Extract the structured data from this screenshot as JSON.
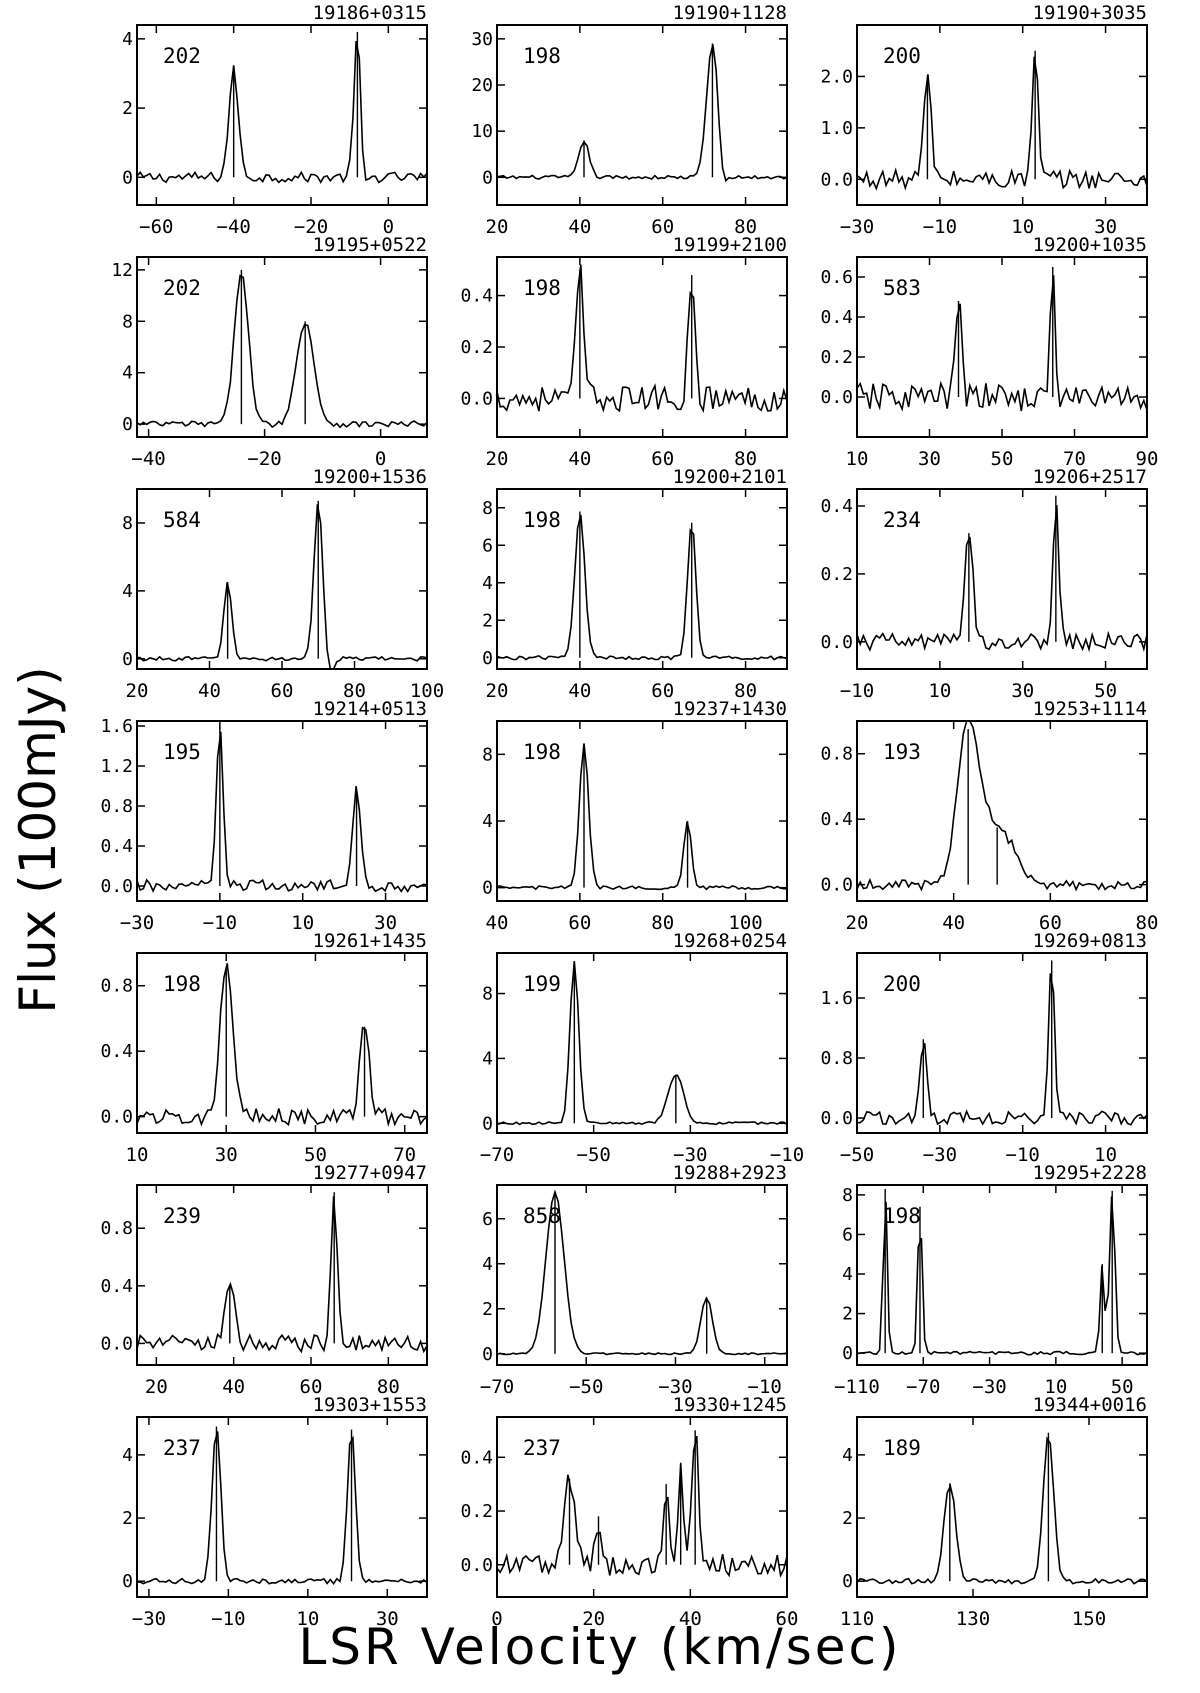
{
  "figure": {
    "ylabel": "Flux (100mJy)",
    "xlabel": "LSR Velocity (km/sec)"
  },
  "chart_data": [
    {
      "type": "line",
      "title": "19186+0315",
      "id_label": "202",
      "xlim": [
        -65,
        10
      ],
      "ylim": [
        -0.8,
        4.4
      ],
      "xticks": [
        -60,
        -40,
        -20,
        0
      ],
      "yticks": [
        {
          "v": 0,
          "l": "0"
        },
        {
          "v": 2,
          "l": "2"
        },
        {
          "v": 4,
          "l": "4"
        }
      ],
      "peaks": [
        {
          "v": -40,
          "a": 3.1,
          "w": 1.2
        },
        {
          "v": -8,
          "a": 4.2,
          "w": 0.9
        }
      ],
      "noise": 0.15,
      "dip_after": [
        -8
      ]
    },
    {
      "type": "line",
      "title": "19190+1128",
      "id_label": "198",
      "xlim": [
        20,
        90
      ],
      "ylim": [
        -6,
        33
      ],
      "xticks": [
        20,
        40,
        60,
        80
      ],
      "yticks": [
        {
          "v": 0,
          "l": "0"
        },
        {
          "v": 10,
          "l": "10"
        },
        {
          "v": 20,
          "l": "20"
        },
        {
          "v": 30,
          "l": "30"
        }
      ],
      "peaks": [
        {
          "v": 41,
          "a": 8,
          "w": 1.2
        },
        {
          "v": 72,
          "a": 29,
          "w": 1.4
        }
      ],
      "noise": 0.4,
      "dip_after": [
        73
      ]
    },
    {
      "type": "line",
      "title": "19190+3035",
      "id_label": "200",
      "xlim": [
        -30,
        40
      ],
      "ylim": [
        -0.5,
        3.0
      ],
      "xticks": [
        -30,
        -10,
        10,
        30
      ],
      "yticks": [
        {
          "v": 0,
          "l": "0.0"
        },
        {
          "v": 1,
          "l": "1.0"
        },
        {
          "v": 2,
          "l": "2.0"
        }
      ],
      "peaks": [
        {
          "v": -13,
          "a": 2.0,
          "w": 0.9
        },
        {
          "v": 13,
          "a": 2.5,
          "w": 0.7
        }
      ],
      "noise": 0.18,
      "dip_after": []
    },
    {
      "type": "line",
      "title": "19195+0522",
      "id_label": "202",
      "xlim": [
        -42,
        8
      ],
      "ylim": [
        -1,
        13
      ],
      "xticks": [
        -40,
        -20,
        0
      ],
      "yticks": [
        {
          "v": 0,
          "l": "0"
        },
        {
          "v": 4,
          "l": "4"
        },
        {
          "v": 8,
          "l": "8"
        },
        {
          "v": 12,
          "l": "12"
        }
      ],
      "peaks": [
        {
          "v": -24,
          "a": 12,
          "w": 1.2
        },
        {
          "v": -13,
          "a": 8,
          "w": 1.5
        }
      ],
      "noise": 0.25,
      "dip_after": []
    },
    {
      "type": "line",
      "title": "19199+2100",
      "id_label": "198",
      "xlim": [
        20,
        90
      ],
      "ylim": [
        -0.15,
        0.55
      ],
      "xticks": [
        20,
        40,
        60,
        80
      ],
      "yticks": [
        {
          "v": 0,
          "l": "0.0"
        },
        {
          "v": 0.2,
          "l": "0.2"
        },
        {
          "v": 0.4,
          "l": "0.4"
        }
      ],
      "peaks": [
        {
          "v": 40,
          "a": 0.5,
          "w": 0.9
        },
        {
          "v": 67,
          "a": 0.48,
          "w": 0.8
        }
      ],
      "noise": 0.05,
      "dip_after": []
    },
    {
      "type": "line",
      "title": "19200+1035",
      "id_label": "583",
      "xlim": [
        10,
        90
      ],
      "ylim": [
        -0.2,
        0.7
      ],
      "xticks": [
        10,
        30,
        50,
        70,
        90
      ],
      "yticks": [
        {
          "v": 0,
          "l": "0.0"
        },
        {
          "v": 0.2,
          "l": "0.2"
        },
        {
          "v": 0.4,
          "l": "0.4"
        },
        {
          "v": 0.6,
          "l": "0.6"
        }
      ],
      "peaks": [
        {
          "v": 38,
          "a": 0.48,
          "w": 0.8
        },
        {
          "v": 64,
          "a": 0.65,
          "w": 0.6
        }
      ],
      "noise": 0.07,
      "dip_after": []
    },
    {
      "type": "line",
      "title": "19200+1536",
      "id_label": "584",
      "xlim": [
        20,
        100
      ],
      "ylim": [
        -0.6,
        10
      ],
      "xticks": [
        20,
        40,
        60,
        80,
        100
      ],
      "yticks": [
        {
          "v": 0,
          "l": "0"
        },
        {
          "v": 4,
          "l": "4"
        },
        {
          "v": 8,
          "l": "8"
        }
      ],
      "peaks": [
        {
          "v": 45,
          "a": 4.5,
          "w": 1.1
        },
        {
          "v": 70,
          "a": 9.3,
          "w": 1.2
        }
      ],
      "noise": 0.12,
      "dip_after": [
        72
      ]
    },
    {
      "type": "line",
      "title": "19200+2101",
      "id_label": "198",
      "xlim": [
        20,
        90
      ],
      "ylim": [
        -0.6,
        9
      ],
      "xticks": [
        20,
        40,
        60,
        80
      ],
      "yticks": [
        {
          "v": 0,
          "l": "0"
        },
        {
          "v": 2,
          "l": "2"
        },
        {
          "v": 4,
          "l": "4"
        },
        {
          "v": 6,
          "l": "6"
        },
        {
          "v": 8,
          "l": "8"
        }
      ],
      "peaks": [
        {
          "v": 40,
          "a": 7.8,
          "w": 1.2
        },
        {
          "v": 67,
          "a": 7.2,
          "w": 1.0
        }
      ],
      "noise": 0.1,
      "dip_after": []
    },
    {
      "type": "line",
      "title": "19206+2517",
      "id_label": "234",
      "xlim": [
        -10,
        60
      ],
      "ylim": [
        -0.08,
        0.45
      ],
      "xticks": [
        -10,
        10,
        30,
        50
      ],
      "yticks": [
        {
          "v": 0,
          "l": "0.0"
        },
        {
          "v": 0.2,
          "l": "0.2"
        },
        {
          "v": 0.4,
          "l": "0.4"
        }
      ],
      "peaks": [
        {
          "v": 17,
          "a": 0.32,
          "w": 1.0
        },
        {
          "v": 38,
          "a": 0.43,
          "w": 0.7
        }
      ],
      "noise": 0.025,
      "dip_after": []
    },
    {
      "type": "line",
      "title": "19214+0513",
      "id_label": "195",
      "xlim": [
        -30,
        40
      ],
      "ylim": [
        -0.15,
        1.65
      ],
      "xticks": [
        -30,
        -10,
        10,
        30
      ],
      "yticks": [
        {
          "v": 0,
          "l": "0.0"
        },
        {
          "v": 0.4,
          "l": "0.4"
        },
        {
          "v": 0.8,
          "l": "0.8"
        },
        {
          "v": 1.2,
          "l": "1.2"
        },
        {
          "v": 1.6,
          "l": "1.6"
        }
      ],
      "peaks": [
        {
          "v": -10,
          "a": 1.6,
          "w": 0.8
        },
        {
          "v": 23,
          "a": 0.95,
          "w": 1.0
        }
      ],
      "noise": 0.06,
      "dip_after": []
    },
    {
      "type": "line",
      "title": "19237+1430",
      "id_label": "198",
      "xlim": [
        40,
        110
      ],
      "ylim": [
        -0.8,
        10
      ],
      "xticks": [
        40,
        60,
        80,
        100
      ],
      "yticks": [
        {
          "v": 0,
          "l": "0"
        },
        {
          "v": 4,
          "l": "4"
        },
        {
          "v": 8,
          "l": "8"
        }
      ],
      "peaks": [
        {
          "v": 61,
          "a": 8.6,
          "w": 1.1
        },
        {
          "v": 86,
          "a": 4.0,
          "w": 0.9
        }
      ],
      "noise": 0.1,
      "dip_after": []
    },
    {
      "type": "line",
      "title": "19253+1114",
      "id_label": "193",
      "xlim": [
        20,
        80
      ],
      "ylim": [
        -0.1,
        1.0
      ],
      "xticks": [
        20,
        40,
        60,
        80
      ],
      "yticks": [
        {
          "v": 0,
          "l": "0.0"
        },
        {
          "v": 0.4,
          "l": "0.4"
        },
        {
          "v": 0.8,
          "l": "0.8"
        }
      ],
      "peaks": [
        {
          "v": 43,
          "a": 0.95,
          "w": 2.2
        },
        {
          "v": 49,
          "a": 0.35,
          "w": 3.5
        }
      ],
      "noise": 0.03,
      "dip_after": []
    },
    {
      "type": "line",
      "title": "19261+1435",
      "id_label": "198",
      "xlim": [
        10,
        75
      ],
      "ylim": [
        -0.1,
        1.0
      ],
      "xticks": [
        10,
        30,
        50,
        70
      ],
      "yticks": [
        {
          "v": 0,
          "l": "0.0"
        },
        {
          "v": 0.4,
          "l": "0.4"
        },
        {
          "v": 0.8,
          "l": "0.8"
        }
      ],
      "peaks": [
        {
          "v": 30,
          "a": 0.9,
          "w": 1.4
        },
        {
          "v": 61,
          "a": 0.55,
          "w": 1.1
        }
      ],
      "noise": 0.05,
      "dip_after": []
    },
    {
      "type": "line",
      "title": "19268+0254",
      "id_label": "199",
      "xlim": [
        -70,
        -10
      ],
      "ylim": [
        -0.6,
        10.5
      ],
      "xticks": [
        -70,
        -50,
        -30,
        -10
      ],
      "yticks": [
        {
          "v": 0,
          "l": "0"
        },
        {
          "v": 4,
          "l": "4"
        },
        {
          "v": 8,
          "l": "8"
        }
      ],
      "peaks": [
        {
          "v": -54,
          "a": 10,
          "w": 0.9
        },
        {
          "v": -33,
          "a": 3.0,
          "w": 1.6
        }
      ],
      "noise": 0.08,
      "dip_after": []
    },
    {
      "type": "line",
      "title": "19269+0813",
      "id_label": "200",
      "xlim": [
        -50,
        20
      ],
      "ylim": [
        -0.2,
        2.2
      ],
      "xticks": [
        -50,
        -30,
        -10,
        10
      ],
      "yticks": [
        {
          "v": 0,
          "l": "0.0"
        },
        {
          "v": 0.8,
          "l": "0.8"
        },
        {
          "v": 1.6,
          "l": "1.6"
        }
      ],
      "peaks": [
        {
          "v": -34,
          "a": 1.05,
          "w": 0.8
        },
        {
          "v": -3,
          "a": 2.1,
          "w": 0.7
        }
      ],
      "noise": 0.09,
      "dip_after": []
    },
    {
      "type": "line",
      "title": "19277+0947",
      "id_label": "239",
      "xlim": [
        15,
        90
      ],
      "ylim": [
        -0.15,
        1.1
      ],
      "xticks": [
        20,
        40,
        60,
        80
      ],
      "yticks": [
        {
          "v": 0,
          "l": "0.0"
        },
        {
          "v": 0.4,
          "l": "0.4"
        },
        {
          "v": 0.8,
          "l": "0.8"
        }
      ],
      "peaks": [
        {
          "v": 39,
          "a": 0.4,
          "w": 1.2
        },
        {
          "v": 66,
          "a": 1.05,
          "w": 0.8
        }
      ],
      "noise": 0.06,
      "dip_after": []
    },
    {
      "type": "line",
      "title": "19288+2923",
      "id_label": "858",
      "xlim": [
        -70,
        -5
      ],
      "ylim": [
        -0.5,
        7.5
      ],
      "xticks": [
        -70,
        -50,
        -30,
        -10
      ],
      "yticks": [
        {
          "v": 0,
          "l": "0"
        },
        {
          "v": 2,
          "l": "2"
        },
        {
          "v": 4,
          "l": "4"
        },
        {
          "v": 6,
          "l": "6"
        }
      ],
      "peaks": [
        {
          "v": -57,
          "a": 7.2,
          "w": 2.0
        },
        {
          "v": -23,
          "a": 2.5,
          "w": 1.3
        }
      ],
      "noise": 0.04,
      "dip_after": []
    },
    {
      "type": "line",
      "title": "19295+2228",
      "id_label": "198",
      "xlim": [
        -110,
        65
      ],
      "ylim": [
        -0.6,
        8.5
      ],
      "xticks": [
        -110,
        -70,
        -30,
        10,
        50
      ],
      "yticks": [
        {
          "v": 0,
          "l": "0"
        },
        {
          "v": 2,
          "l": "2"
        },
        {
          "v": 4,
          "l": "4"
        },
        {
          "v": 6,
          "l": "6"
        },
        {
          "v": 8,
          "l": "8"
        }
      ],
      "peaks": [
        {
          "v": -93,
          "a": 8.3,
          "w": 1.2
        },
        {
          "v": -72,
          "a": 7.4,
          "w": 1.3
        },
        {
          "v": 38,
          "a": 4.5,
          "w": 1.3
        },
        {
          "v": 44,
          "a": 8.2,
          "w": 1.6
        }
      ],
      "noise": 0.08,
      "dip_after": []
    },
    {
      "type": "line",
      "title": "19303+1553",
      "id_label": "237",
      "xlim": [
        -33,
        40
      ],
      "ylim": [
        -0.5,
        5.2
      ],
      "xticks": [
        -30,
        -10,
        10,
        30
      ],
      "yticks": [
        {
          "v": 0,
          "l": "0"
        },
        {
          "v": 2,
          "l": "2"
        },
        {
          "v": 4,
          "l": "4"
        }
      ],
      "peaks": [
        {
          "v": -13,
          "a": 4.9,
          "w": 1.1
        },
        {
          "v": 21,
          "a": 4.8,
          "w": 1.0
        }
      ],
      "noise": 0.08,
      "dip_after": []
    },
    {
      "type": "line",
      "title": "19330+1245",
      "id_label": "237",
      "xlim": [
        0,
        60
      ],
      "ylim": [
        -0.12,
        0.55
      ],
      "xticks": [
        0,
        20,
        40,
        60
      ],
      "yticks": [
        {
          "v": 0,
          "l": "0.0"
        },
        {
          "v": 0.2,
          "l": "0.2"
        },
        {
          "v": 0.4,
          "l": "0.4"
        }
      ],
      "peaks": [
        {
          "v": 15,
          "a": 0.32,
          "w": 1.1
        },
        {
          "v": 21,
          "a": 0.18,
          "w": 0.6
        },
        {
          "v": 35,
          "a": 0.3,
          "w": 0.5
        },
        {
          "v": 38,
          "a": 0.38,
          "w": 0.5
        },
        {
          "v": 41,
          "a": 0.5,
          "w": 0.7
        }
      ],
      "noise": 0.04,
      "dip_after": []
    },
    {
      "type": "line",
      "title": "19344+0016",
      "id_label": "189",
      "xlim": [
        110,
        160
      ],
      "ylim": [
        -0.5,
        5.2
      ],
      "xticks": [
        110,
        130,
        150
      ],
      "yticks": [
        {
          "v": 0,
          "l": "0"
        },
        {
          "v": 2,
          "l": "2"
        },
        {
          "v": 4,
          "l": "4"
        }
      ],
      "peaks": [
        {
          "v": 126,
          "a": 3.1,
          "w": 1.0
        },
        {
          "v": 143,
          "a": 4.7,
          "w": 0.9
        }
      ],
      "noise": 0.08,
      "dip_after": []
    }
  ]
}
